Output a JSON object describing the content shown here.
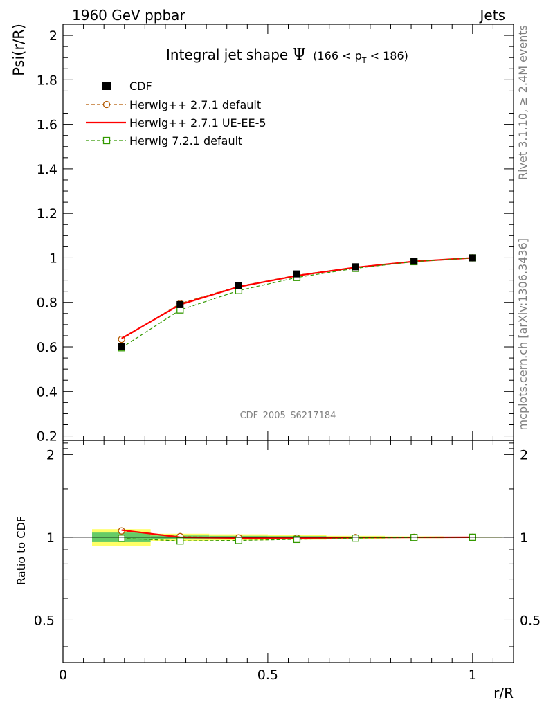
{
  "header": {
    "left": "1960 GeV ppbar",
    "right": "Jets"
  },
  "side_labels": {
    "rivet": "Rivet 3.1.10, ≥ 2.4M events",
    "mcplots": "mcplots.cern.ch [arXiv:1306.3436]"
  },
  "watermark": "CDF_2005_S6217184",
  "chart_data": {
    "type": "line",
    "title": "Integral jet shape",
    "title_symbol": "Ψ",
    "title_range": {
      "pre": "(166 < p",
      "sub": "T",
      "post": " < 186)"
    },
    "xlabel": "r/R",
    "ylabel": "Psi(r/R)",
    "ratio_ylabel": "Ratio to CDF",
    "xlim": [
      0,
      1.1
    ],
    "ylim": [
      0.18,
      2.05
    ],
    "ratio_ylim": [
      0.35,
      2.25
    ],
    "x_ticks": [
      "0",
      "0.5",
      "1"
    ],
    "y_ticks": [
      "0.2",
      "0.4",
      "0.6",
      "0.8",
      "1",
      "1.2",
      "1.4",
      "1.6",
      "1.8",
      "2"
    ],
    "ratio_ticks": [
      "0.5",
      "1",
      "2"
    ],
    "x": [
      0.143,
      0.286,
      0.429,
      0.571,
      0.714,
      0.857,
      1.0
    ],
    "data": {
      "name": "CDF",
      "values": [
        0.601,
        0.79,
        0.876,
        0.928,
        0.96,
        0.985,
        1.0
      ],
      "color": "#000000"
    },
    "series": [
      {
        "name": "Herwig++ 2.7.1 default",
        "values": [
          0.634,
          0.795,
          0.872,
          0.922,
          0.958,
          0.985,
          1.0
        ],
        "color": "#b35900",
        "style": "dashed",
        "marker": "circle"
      },
      {
        "name": "Herwig++ 2.7.1 UE-EE-5",
        "values": [
          0.638,
          0.79,
          0.87,
          0.92,
          0.957,
          0.984,
          1.0
        ],
        "color": "#ff0000",
        "style": "solid",
        "marker": "none"
      },
      {
        "name": "Herwig 7.2.1 default",
        "values": [
          0.596,
          0.766,
          0.853,
          0.912,
          0.953,
          0.983,
          1.0
        ],
        "color": "#339900",
        "style": "dashed",
        "marker": "square"
      }
    ],
    "band": {
      "x_edges": [
        0.071,
        0.214,
        0.357,
        0.5,
        0.643,
        0.786,
        0.929,
        1.071
      ],
      "inner": [
        0.04,
        0.015,
        0.012,
        0.01,
        0.006,
        0.004,
        0.002
      ],
      "outer": [
        0.07,
        0.03,
        0.025,
        0.02,
        0.012,
        0.008,
        0.004
      ],
      "inner_color": "#66cc66",
      "outer_color": "#ffff66"
    }
  }
}
